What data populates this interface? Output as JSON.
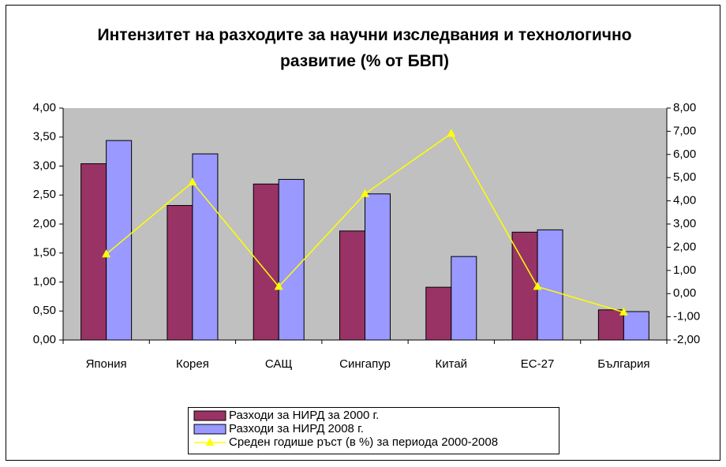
{
  "chart_data": {
    "type": "bar",
    "title": "Интензитет на разходите за научни изследвания и технологично развитие (% от БВП)",
    "categories": [
      "Япония",
      "Корея",
      "САЩ",
      "Сингапур",
      "Китай",
      "ЕС-27",
      "България"
    ],
    "series": [
      {
        "name": "Разходи за НИРД за 2000 г.",
        "color": "#993366",
        "values": [
          3.04,
          2.32,
          2.69,
          1.88,
          0.91,
          1.86,
          0.52
        ]
      },
      {
        "name": "Разходи за НИРД 2008 г.",
        "color": "#9999ff",
        "values": [
          3.44,
          3.21,
          2.77,
          2.52,
          1.44,
          1.9,
          0.49
        ]
      },
      {
        "name": "Среден годише ръст (в %) за периода 2000-2008",
        "color": "#ffff00",
        "type": "line",
        "axis": "y2",
        "values": [
          1.7,
          4.8,
          0.3,
          4.3,
          6.9,
          0.3,
          -0.8
        ]
      }
    ],
    "ylim": [
      0,
      4
    ],
    "yticks": [
      {
        "value": 0,
        "label": "0,00"
      },
      {
        "value": 0.5,
        "label": "0,50"
      },
      {
        "value": 1,
        "label": "1,00"
      },
      {
        "value": 1.5,
        "label": "1,50"
      },
      {
        "value": 2,
        "label": "2,00"
      },
      {
        "value": 2.5,
        "label": "2,50"
      },
      {
        "value": 3,
        "label": "3,00"
      },
      {
        "value": 3.5,
        "label": "3,50"
      },
      {
        "value": 4,
        "label": "4,00"
      }
    ],
    "y2lim": [
      -2,
      8
    ],
    "y2ticks": [
      {
        "value": -2,
        "label": "-2,00"
      },
      {
        "value": -1,
        "label": "-1,00"
      },
      {
        "value": 0,
        "label": "0,00"
      },
      {
        "value": 1,
        "label": "1,00"
      },
      {
        "value": 2,
        "label": "2,00"
      },
      {
        "value": 3,
        "label": "3,00"
      },
      {
        "value": 4,
        "label": "4,00"
      },
      {
        "value": 5,
        "label": "5,00"
      },
      {
        "value": 6,
        "label": "6,00"
      },
      {
        "value": 7,
        "label": "7,00"
      },
      {
        "value": 8,
        "label": "8,00"
      }
    ],
    "grid": false,
    "legend": "bottom"
  }
}
